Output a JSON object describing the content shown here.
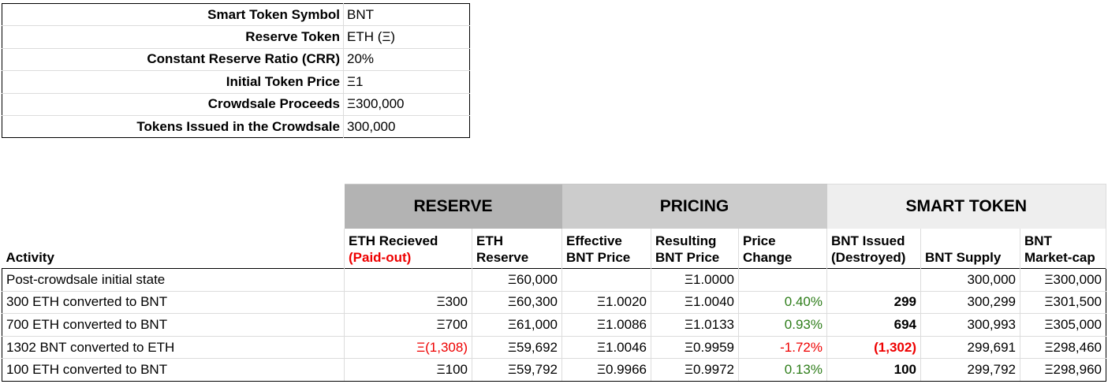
{
  "params": [
    {
      "label": "Smart Token Symbol",
      "value": "BNT"
    },
    {
      "label": "Reserve Token",
      "value": "ETH (Ξ)"
    },
    {
      "label": "Constant Reserve Ratio (CRR)",
      "value": "20%"
    },
    {
      "label": "Initial Token Price",
      "value": "Ξ1"
    },
    {
      "label": "Crowdsale Proceeds",
      "value": "Ξ300,000"
    },
    {
      "label": "Tokens Issued in the Crowdsale",
      "value": "300,000"
    }
  ],
  "groups": {
    "reserve": "RESERVE",
    "pricing": "PRICING",
    "smart_token": "SMART TOKEN"
  },
  "headers": {
    "activity": "Activity",
    "eth_received_line1": "ETH Recieved",
    "eth_received_line2": "(Paid-out)",
    "eth_reserve_line1": "ETH",
    "eth_reserve_line2": "Reserve",
    "effective_price_line1": "Effective",
    "effective_price_line2": "BNT Price",
    "resulting_price_line1": "Resulting",
    "resulting_price_line2": "BNT Price",
    "price_change_line1": "Price",
    "price_change_line2": "Change",
    "bnt_issued_line1": "BNT Issued",
    "bnt_issued_line2": "(Destroyed)",
    "bnt_supply": "BNT Supply",
    "market_cap_line1": "BNT",
    "market_cap_line2": "Market-cap"
  },
  "rows": [
    {
      "activity": "Post-crowdsale initial state",
      "eth_received": "",
      "eth_reserve": "Ξ60,000",
      "effective_price": "",
      "resulting_price": "Ξ1.0000",
      "price_change": "",
      "bnt_issued": "",
      "bnt_supply": "300,000",
      "market_cap": "Ξ300,000"
    },
    {
      "activity": "300 ETH converted to BNT",
      "eth_received": "Ξ300",
      "eth_reserve": "Ξ60,300",
      "effective_price": "Ξ1.0020",
      "resulting_price": "Ξ1.0040",
      "price_change": "0.40%",
      "bnt_issued": "299",
      "bnt_supply": "300,299",
      "market_cap": "Ξ301,500"
    },
    {
      "activity": "700 ETH converted to BNT",
      "eth_received": "Ξ700",
      "eth_reserve": "Ξ61,000",
      "effective_price": "Ξ1.0086",
      "resulting_price": "Ξ1.0133",
      "price_change": "0.93%",
      "bnt_issued": "694",
      "bnt_supply": "300,993",
      "market_cap": "Ξ305,000"
    },
    {
      "activity": "1302 BNT converted to ETH",
      "eth_received": "Ξ(1,308)",
      "eth_reserve": "Ξ59,692",
      "effective_price": "Ξ1.0046",
      "resulting_price": "Ξ0.9959",
      "price_change": "-1.72%",
      "bnt_issued": "(1,302)",
      "bnt_supply": "299,691",
      "market_cap": "Ξ298,460"
    },
    {
      "activity": "100 ETH converted to BNT",
      "eth_received": "Ξ100",
      "eth_reserve": "Ξ59,792",
      "effective_price": "Ξ0.9966",
      "resulting_price": "Ξ0.9972",
      "price_change": "0.13%",
      "bnt_issued": "100",
      "bnt_supply": "299,792",
      "market_cap": "Ξ298,960"
    }
  ],
  "colors": {
    "negative": "#ee0000",
    "positive": "#2e7d1a",
    "reserve_header": "#b3b3b3",
    "pricing_header": "#cccccc",
    "token_header": "#eeeeee"
  }
}
